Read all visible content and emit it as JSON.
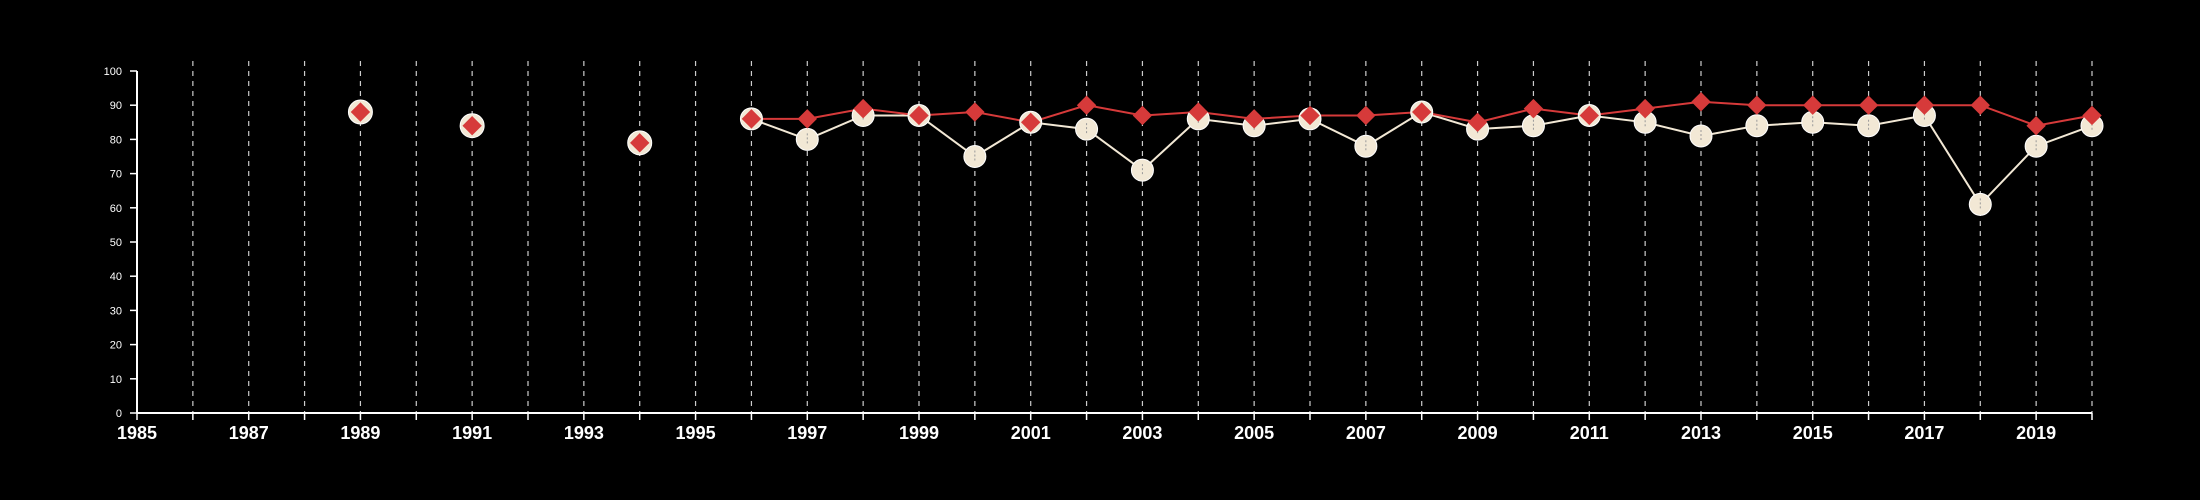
{
  "chart_data": {
    "type": "line",
    "title": "",
    "xlabel": "",
    "ylabel": "",
    "xlim": [
      1985,
      2020
    ],
    "ylim": [
      0,
      100
    ],
    "x_ticks": [
      1985,
      1987,
      1989,
      1991,
      1993,
      1995,
      1997,
      1999,
      2001,
      2003,
      2005,
      2007,
      2009,
      2011,
      2013,
      2015,
      2017,
      2019
    ],
    "x_tick_labels": [
      "1985",
      "1987",
      "1989",
      "1991",
      "1993",
      "1995",
      "1997",
      "1999",
      "2001",
      "2003",
      "2005",
      "2007",
      "2009",
      "2011",
      "2013",
      "2015",
      "2017",
      "2019"
    ],
    "y_ticks": [
      0,
      10,
      20,
      30,
      40,
      50,
      60,
      70,
      80,
      90,
      100
    ],
    "y_tick_labels": [
      "0",
      "10",
      "20",
      "30",
      "40",
      "50",
      "60",
      "70",
      "80",
      "90",
      "100"
    ],
    "vertical_grid": "dashed lines at every year from 1986 to 2020",
    "grid_start_year": 1986,
    "grid_end_year": 2020,
    "legend": "none",
    "series": [
      {
        "marker": "circle",
        "color": "#f2e8d5",
        "points": [
          [
            1996,
            86
          ],
          [
            1997,
            80
          ],
          [
            1998,
            87
          ],
          [
            1999,
            87
          ],
          [
            2000,
            75
          ],
          [
            2001,
            85
          ],
          [
            2002,
            83
          ],
          [
            2003,
            71
          ],
          [
            2004,
            86
          ],
          [
            2005,
            84
          ],
          [
            2006,
            86
          ],
          [
            2007,
            78
          ],
          [
            2008,
            88
          ],
          [
            2009,
            83
          ],
          [
            2010,
            84
          ],
          [
            2011,
            87
          ],
          [
            2012,
            85
          ],
          [
            2013,
            81
          ],
          [
            2014,
            84
          ],
          [
            2015,
            85
          ],
          [
            2016,
            84
          ],
          [
            2017,
            87
          ],
          [
            2018,
            61
          ],
          [
            2019,
            78
          ],
          [
            2020,
            84
          ]
        ]
      },
      {
        "marker": "diamond",
        "color": "#d63a3a",
        "isolated_points": [
          [
            1989,
            88
          ],
          [
            1991,
            84
          ],
          [
            1994,
            79
          ]
        ],
        "points": [
          [
            1996,
            86
          ],
          [
            1997,
            86
          ],
          [
            1998,
            89
          ],
          [
            1999,
            87
          ],
          [
            2000,
            88
          ],
          [
            2001,
            85
          ],
          [
            2002,
            90
          ],
          [
            2003,
            87
          ],
          [
            2004,
            88
          ],
          [
            2005,
            86
          ],
          [
            2006,
            87
          ],
          [
            2007,
            87
          ],
          [
            2008,
            88
          ],
          [
            2009,
            85
          ],
          [
            2010,
            89
          ],
          [
            2011,
            87
          ],
          [
            2012,
            89
          ],
          [
            2013,
            91
          ],
          [
            2014,
            90
          ],
          [
            2015,
            90
          ],
          [
            2016,
            90
          ],
          [
            2017,
            90
          ],
          [
            2018,
            90
          ],
          [
            2019,
            84
          ],
          [
            2020,
            87
          ]
        ]
      }
    ]
  },
  "colors": {
    "background": "#000000",
    "axis": "#ffffff",
    "grid": "#cccccc",
    "circle_series": "#f2e8d5",
    "diamond_series": "#d63a3a"
  }
}
